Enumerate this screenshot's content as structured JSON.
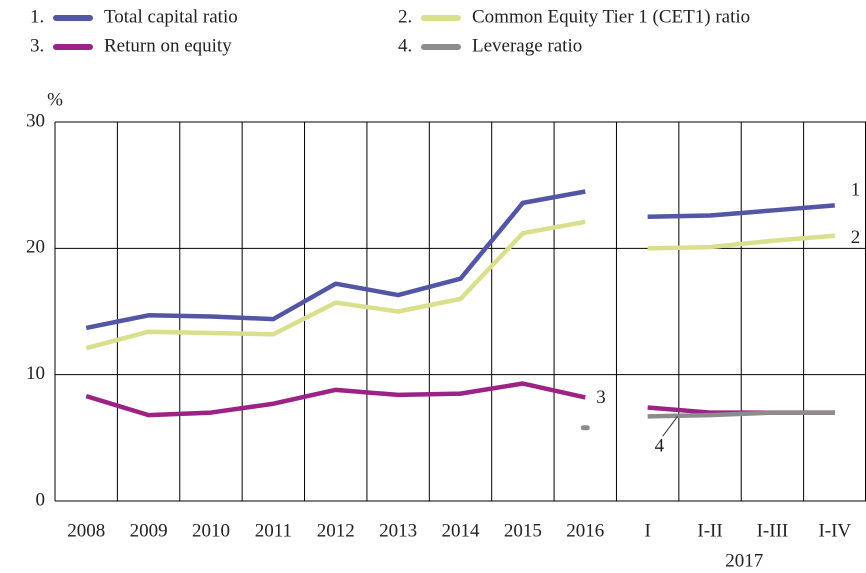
{
  "chart_data": {
    "type": "line",
    "ylabel": "%",
    "categories": [
      "2008",
      "2009",
      "2010",
      "2011",
      "2012",
      "2013",
      "2014",
      "2015",
      "2016",
      "I",
      "I-II",
      "I-III",
      "I-IV"
    ],
    "period_break": "I",
    "period_label": "2017",
    "ylim": [
      0,
      30
    ],
    "yticks": [
      0,
      10,
      20,
      30
    ],
    "grid": true,
    "series": [
      {
        "name": "Total capital ratio",
        "legend_number": "1.",
        "end_label": "1",
        "color": "#5356a4",
        "values": [
          13.7,
          14.7,
          14.6,
          14.4,
          17.2,
          16.3,
          17.6,
          23.6,
          24.5,
          22.5,
          22.6,
          23.0,
          23.4
        ]
      },
      {
        "name": "Common Equity Tier 1 (CET1) ratio",
        "legend_number": "2.",
        "end_label": "2",
        "color": "#d9df8c",
        "values": [
          12.1,
          13.4,
          13.3,
          13.2,
          15.7,
          15.0,
          16.0,
          21.2,
          22.1,
          20.0,
          20.1,
          20.6,
          21.0
        ]
      },
      {
        "name": "Return on equity",
        "legend_number": "3.",
        "end_label": "3",
        "color": "#9b2385",
        "values": [
          8.3,
          6.8,
          7.0,
          7.7,
          8.8,
          8.4,
          8.5,
          9.3,
          8.2,
          7.4,
          7.0,
          7.0,
          7.0
        ]
      },
      {
        "name": "Leverage ratio",
        "legend_number": "4.",
        "end_label": "4",
        "color": "#8c8c8c",
        "values": [
          null,
          null,
          null,
          null,
          null,
          null,
          null,
          null,
          5.8,
          6.7,
          6.8,
          7.0,
          7.0
        ]
      }
    ]
  }
}
